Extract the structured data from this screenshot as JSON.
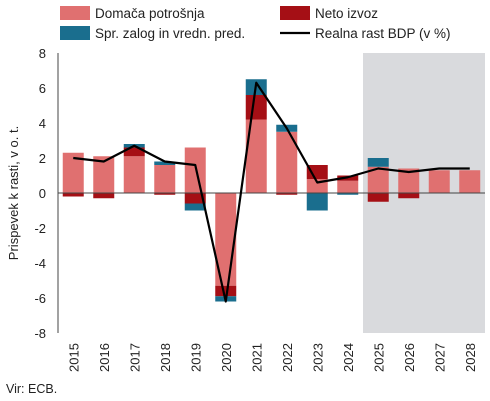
{
  "chart_data": {
    "type": "bar",
    "categories": [
      "2015",
      "2016",
      "2017",
      "2018",
      "2019",
      "2020",
      "2021",
      "2022",
      "2023",
      "2024",
      "2025",
      "2026",
      "2027",
      "2028"
    ],
    "projection_start": "2025",
    "ylabel": "Prispevek k rasti, v o. t.",
    "ylim": [
      -8,
      8
    ],
    "yticks": [
      -8,
      -6,
      -4,
      -2,
      0,
      2,
      4,
      6,
      8
    ],
    "grid": false,
    "legend_position": "top",
    "series": [
      {
        "name": "Domača potrošnja",
        "kind": "bar",
        "color": "#e07070",
        "values": [
          2.3,
          2.1,
          2.1,
          1.6,
          2.6,
          -5.3,
          4.2,
          3.5,
          0.8,
          0.7,
          1.5,
          1.4,
          1.3,
          1.3
        ]
      },
      {
        "name": "Neto izvoz",
        "kind": "bar",
        "color": "#a50f15",
        "values": [
          -0.2,
          -0.3,
          0.5,
          -0.1,
          -0.6,
          -0.6,
          1.4,
          -0.1,
          0.8,
          0.3,
          -0.5,
          -0.3,
          0.0,
          0.0
        ]
      },
      {
        "name": "Spr. zalog in vredn. pred.",
        "kind": "bar",
        "color": "#1a6e8e",
        "values": [
          0.0,
          0.0,
          0.2,
          0.2,
          -0.4,
          -0.3,
          0.9,
          0.4,
          -1.0,
          -0.1,
          0.5,
          0.0,
          0.0,
          0.0
        ]
      },
      {
        "name": "Realna rast BDP (v %)",
        "kind": "line",
        "color": "#000000",
        "values": [
          2.0,
          1.8,
          2.7,
          1.8,
          1.6,
          -6.2,
          6.3,
          3.7,
          0.6,
          0.9,
          1.4,
          1.2,
          1.4,
          1.4
        ]
      }
    ]
  },
  "colors": {
    "projection_shade": "#d9dadd",
    "axis": "#444444"
  },
  "source_note": "Vir: ECB."
}
